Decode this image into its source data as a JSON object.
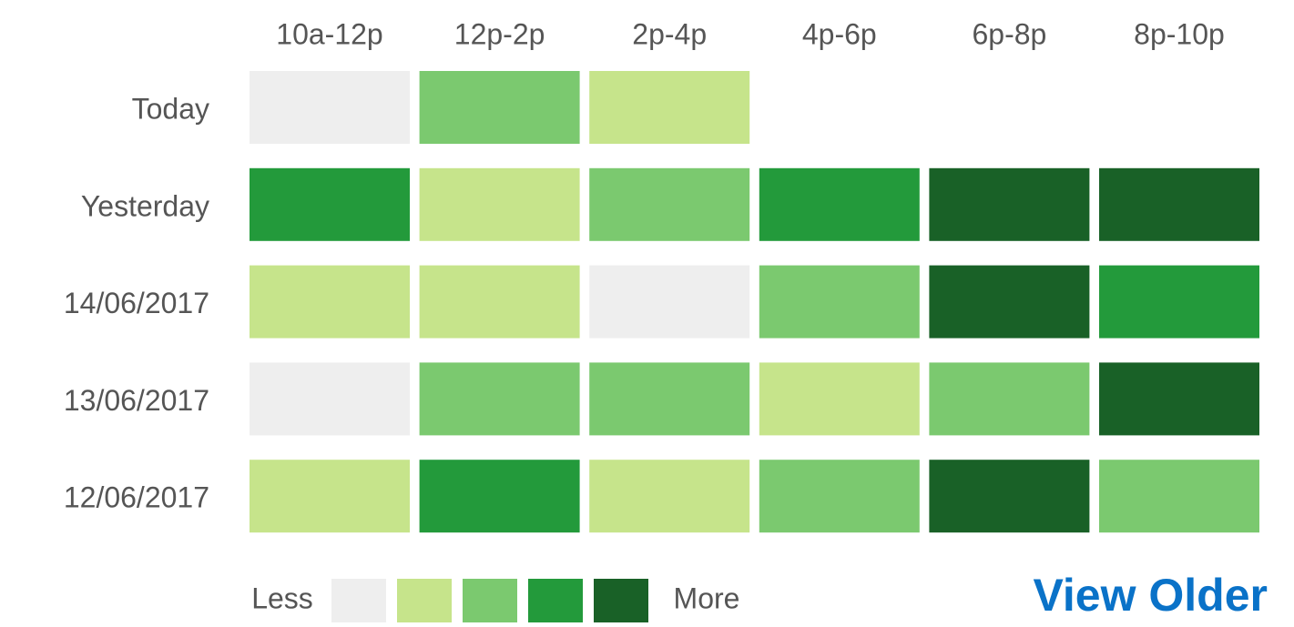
{
  "chart_data": {
    "type": "heatmap",
    "categories": [
      "10a-12p",
      "12p-2p",
      "2p-4p",
      "4p-6p",
      "6p-8p",
      "8p-10p"
    ],
    "rows": [
      "Today",
      "Yesterday",
      "14/06/2017",
      "13/06/2017",
      "12/06/2017"
    ],
    "values": [
      [
        0,
        2,
        1,
        null,
        null,
        null
      ],
      [
        3,
        1,
        2,
        3,
        4,
        4
      ],
      [
        1,
        1,
        0,
        2,
        4,
        3
      ],
      [
        0,
        2,
        2,
        1,
        2,
        4
      ],
      [
        1,
        3,
        1,
        2,
        4,
        2
      ]
    ],
    "colors": [
      "#eeeeee",
      "#c6e48b",
      "#7bc96f",
      "#239a3b",
      "#196127"
    ],
    "legend": {
      "low": "Less",
      "high": "More"
    }
  },
  "link": "View Older"
}
